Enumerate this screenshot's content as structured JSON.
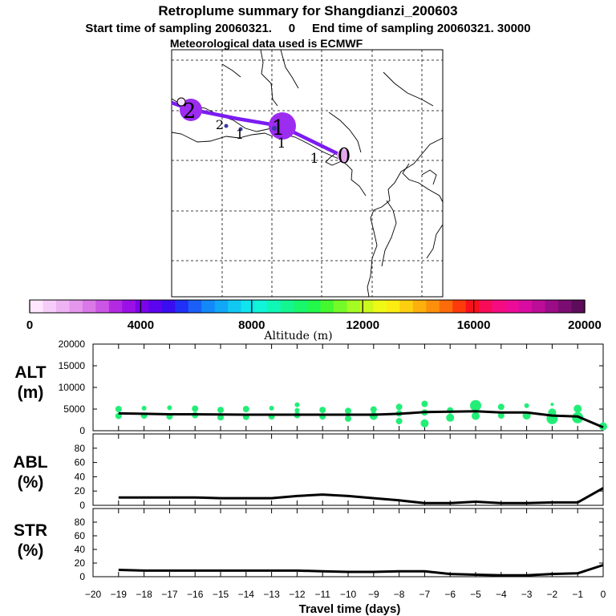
{
  "title": "Retroplume summary for Shangdianzi_200603",
  "subtitle": "Start time of sampling 20060321.     0     End time of sampling 20060321. 30000",
  "met_line": "Meteorological data used is ECMWF",
  "colorbar": {
    "label": "Altitude (m)",
    "tick_labels": [
      "0",
      "4000",
      "8000",
      "12000",
      "16000",
      "20000"
    ],
    "colors": [
      "#ffe8ff",
      "#f6cdf8",
      "#eeb3f3",
      "#e597ee",
      "#da78e8",
      "#cb55e4",
      "#b42ae2",
      "#9a10e6",
      "#7b04ea",
      "#5d04ee",
      "#3a0cf0",
      "#2030f6",
      "#1a60f8",
      "#1388f8",
      "#10a8f6",
      "#10c8f2",
      "#10e4ee",
      "#10f4d8",
      "#10f6b4",
      "#14f690",
      "#18f66c",
      "#20f84c",
      "#44f830",
      "#74fa28",
      "#a4fa22",
      "#ccfa1c",
      "#eefa16",
      "#fcec12",
      "#fcd010",
      "#fcb00e",
      "#fc900c",
      "#fc6c0a",
      "#fc3a0a",
      "#f8101c",
      "#f80c58",
      "#f40c80",
      "#ec0c98",
      "#d80ca0",
      "#bc0c98",
      "#9a0c88",
      "#7a0c72",
      "#5c0c58"
    ]
  },
  "map": {
    "trajectory_labels": [
      {
        "text": "0",
        "kind": "mean"
      },
      {
        "text": "1",
        "kind": "mean"
      },
      {
        "text": "2",
        "kind": "mean"
      },
      {
        "text": "1",
        "kind": "cluster"
      },
      {
        "text": "1",
        "kind": "cluster"
      },
      {
        "text": "2",
        "kind": "cluster"
      },
      {
        "text": "1",
        "kind": "cluster"
      }
    ]
  },
  "chart_data": [
    {
      "type": "line",
      "panel": "ALT",
      "ylabel": "ALT\n(m)",
      "x": [
        -19,
        -18,
        -17,
        -16,
        -15,
        -14,
        -13,
        -12,
        -11,
        -10,
        -9,
        -8,
        -7,
        -6,
        -5,
        -4,
        -3,
        -2,
        -1,
        0
      ],
      "values": [
        4000,
        3900,
        3800,
        3800,
        3750,
        3700,
        3700,
        3700,
        3700,
        3700,
        3700,
        3900,
        4300,
        4400,
        4500,
        4200,
        4200,
        3500,
        3300,
        800
      ],
      "ylim": [
        0,
        20000
      ],
      "y_ticks": [
        0,
        5000,
        10000,
        15000,
        20000
      ],
      "scatter_clusters": {
        "x": [
          -19,
          -19,
          -18,
          -18,
          -17,
          -17,
          -16,
          -16,
          -15,
          -15,
          -14,
          -14,
          -13,
          -13,
          -12,
          -12,
          -12,
          -11,
          -11,
          -10,
          -10,
          -9,
          -9,
          -8,
          -8,
          -8,
          -7,
          -7,
          -7,
          -6,
          -6,
          -5,
          -5,
          -4,
          -4,
          -3,
          -3,
          -2,
          -2,
          -2,
          -1,
          -1,
          0
        ],
        "y": [
          5000,
          3400,
          5200,
          3500,
          5300,
          3300,
          5100,
          3600,
          4800,
          3100,
          5000,
          3200,
          5200,
          3300,
          6000,
          4700,
          3600,
          4800,
          3300,
          4600,
          2800,
          4900,
          3400,
          5500,
          4000,
          2200,
          6200,
          4200,
          1700,
          4700,
          3000,
          5800,
          3400,
          5500,
          3500,
          5800,
          3500,
          6100,
          4200,
          2800,
          5100,
          3000,
          1000
        ],
        "sizes": [
          4,
          4,
          3,
          4,
          3,
          4,
          4,
          4,
          4,
          4,
          4,
          4,
          3,
          4,
          3,
          3,
          4,
          4,
          4,
          4,
          4,
          4,
          5,
          4,
          4,
          4,
          4,
          4,
          5,
          4,
          5,
          7,
          5,
          4,
          4,
          3,
          5,
          2,
          5,
          7,
          5,
          7,
          5
        ]
      },
      "color": "#000000",
      "scatter_color": "#22ee77"
    },
    {
      "type": "line",
      "panel": "ABL",
      "ylabel": "ABL\n(%)",
      "x": [
        -19,
        -18,
        -17,
        -16,
        -15,
        -14,
        -13,
        -12,
        -11,
        -10,
        -9,
        -8,
        -7,
        -6,
        -5,
        -4,
        -3,
        -2,
        -1,
        0
      ],
      "values": [
        11,
        11,
        11,
        11,
        10,
        10,
        10,
        13,
        15,
        13,
        10,
        7,
        3,
        3,
        5,
        3,
        3,
        4,
        4,
        24
      ],
      "ylim": [
        0,
        100
      ],
      "y_ticks": [
        0,
        20,
        40,
        60,
        80
      ],
      "color": "#000000"
    },
    {
      "type": "line",
      "panel": "STR",
      "ylabel": "STR\n(%)",
      "x": [
        -19,
        -18,
        -17,
        -16,
        -15,
        -14,
        -13,
        -12,
        -11,
        -10,
        -9,
        -8,
        -7,
        -6,
        -5,
        -4,
        -3,
        -2,
        -1,
        0
      ],
      "values": [
        10,
        9,
        9,
        9,
        9,
        9,
        9,
        9,
        8,
        7,
        7,
        8,
        8,
        4,
        3,
        2,
        2,
        4,
        5,
        17
      ],
      "ylim": [
        0,
        100
      ],
      "y_ticks": [
        0,
        20,
        40,
        60,
        80
      ],
      "color": "#000000"
    }
  ],
  "x_axis": {
    "label": "Travel time (days)",
    "ticks": [
      -20,
      -19,
      -18,
      -17,
      -16,
      -15,
      -14,
      -13,
      -12,
      -11,
      -10,
      -9,
      -8,
      -7,
      -6,
      -5,
      -4,
      -3,
      -2,
      -1,
      0
    ]
  }
}
